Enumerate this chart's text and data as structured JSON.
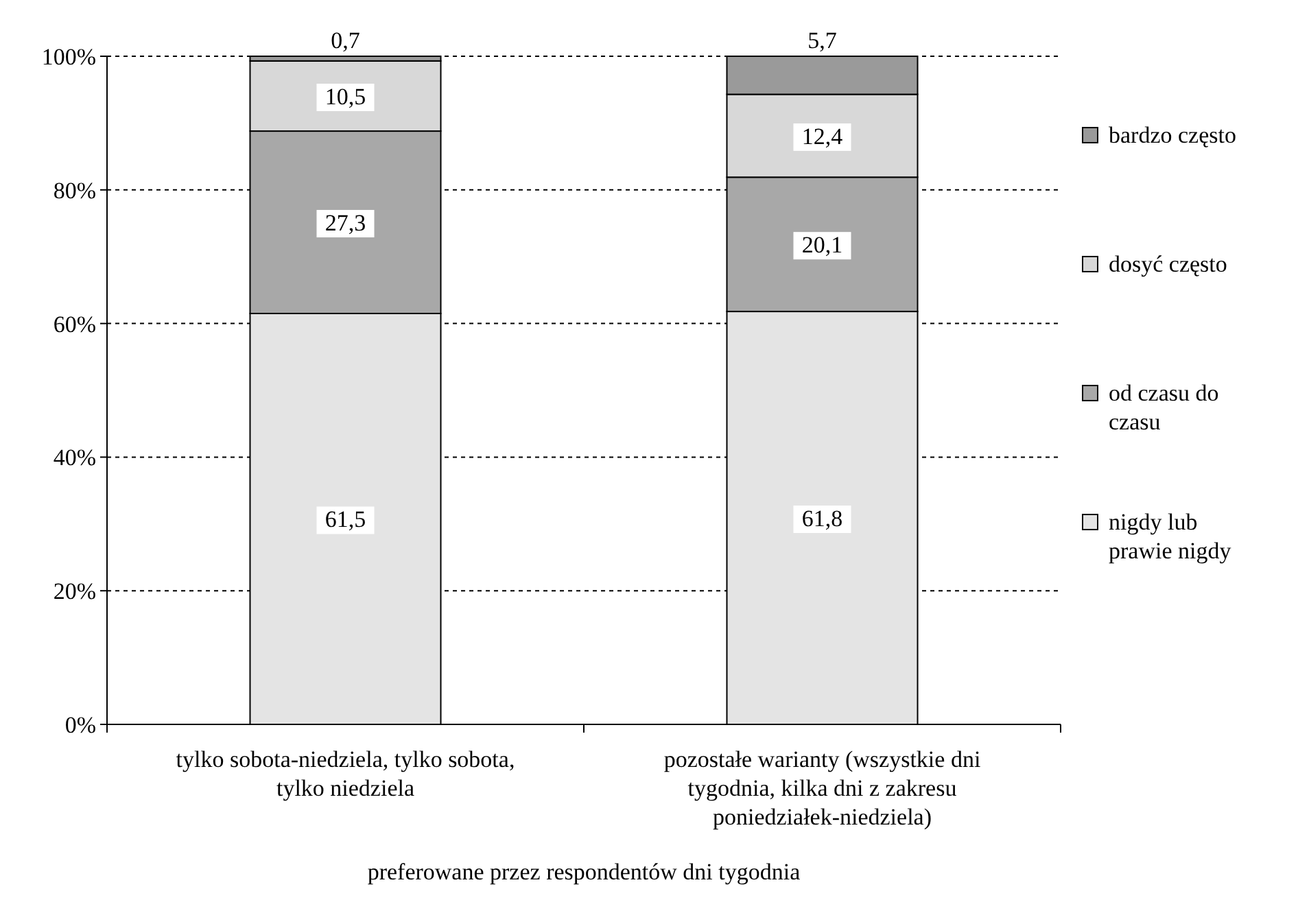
{
  "chart_data": {
    "type": "bar",
    "stacked": true,
    "xlabel": "preferowane przez respondentów dni tygodnia",
    "categories": [
      "tylko sobota-niedziela, tylko sobota, tylko niedziela",
      "pozostałe warianty (wszystkie dni tygodnia, kilka dni z zakresu poniedziałek-niedziela)"
    ],
    "series": [
      {
        "name": "nigdy lub prawie nigdy",
        "color": "#e4e4e4",
        "values": [
          61.5,
          61.8
        ],
        "value_labels": [
          "61,5",
          "61,8"
        ]
      },
      {
        "name": "od czasu do czasu",
        "color": "#a8a8a8",
        "values": [
          27.3,
          20.1
        ],
        "value_labels": [
          "27,3",
          "20,1"
        ]
      },
      {
        "name": "dosyć często",
        "color": "#d8d8d8",
        "values": [
          10.5,
          12.4
        ],
        "value_labels": [
          "10,5",
          "12,4"
        ]
      },
      {
        "name": "bardzo często",
        "color": "#9a9a9a",
        "values": [
          0.7,
          5.7
        ],
        "value_labels": [
          "0,7",
          "5,7"
        ]
      }
    ],
    "ylim": [
      0,
      100
    ],
    "yticks": [
      {
        "value": 0,
        "label": "0%"
      },
      {
        "value": 20,
        "label": "20%"
      },
      {
        "value": 40,
        "label": "40%"
      },
      {
        "value": 60,
        "label": "60%"
      },
      {
        "value": 80,
        "label": "80%"
      },
      {
        "value": 100,
        "label": "100%"
      }
    ],
    "grid": "y",
    "legend": "right"
  }
}
